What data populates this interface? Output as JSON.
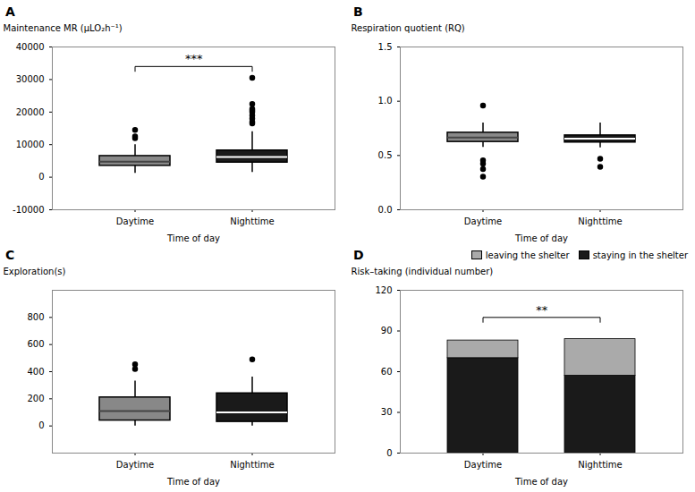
{
  "chart_data": [
    {
      "type": "box",
      "title": "A",
      "xlabel": "Time of day",
      "ylabel": "Maintenance MR (μLO₂h⁻¹)",
      "categories": [
        "Daytime",
        "Nighttime"
      ],
      "q1": [
        3500,
        4500
      ],
      "median": [
        4800,
        6200
      ],
      "q3": [
        6500,
        8200
      ],
      "whislo": [
        1200,
        1500
      ],
      "whishi": [
        10000,
        14000
      ],
      "fliers": [
        [
          12000,
          12500,
          14500
        ],
        [
          16500,
          17000,
          18000,
          19000,
          20000,
          20500,
          21000,
          22500,
          30500
        ]
      ],
      "colors": [
        "#888888",
        "#1a1a1a"
      ],
      "ylim": [
        -10000,
        40000
      ],
      "yticks": [
        -10000,
        0,
        10000,
        20000,
        30000,
        40000
      ],
      "annotations": [
        {
          "text": "***",
          "y": 34000,
          "x1": "Daytime",
          "x2": "Nighttime"
        }
      ]
    },
    {
      "type": "box",
      "title": "B",
      "xlabel": "Time of day",
      "ylabel": "Respiration quotient (RQ)",
      "categories": [
        "Daytime",
        "Nighttime"
      ],
      "q1": [
        0.625,
        0.62
      ],
      "median": [
        0.665,
        0.655
      ],
      "q3": [
        0.71,
        0.685
      ],
      "whislo": [
        0.575,
        0.57
      ],
      "whishi": [
        0.8,
        0.8
      ],
      "fliers": [
        [
          0.96,
          0.455,
          0.425,
          0.375,
          0.305
        ],
        [
          0.47,
          0.395
        ]
      ],
      "colors": [
        "#888888",
        "#1a1a1a"
      ],
      "ylim": [
        0.0,
        1.5
      ],
      "yticks": [
        {
          "value": 0,
          "label": "0.0"
        },
        0.5,
        {
          "value": 1,
          "label": "1.0"
        },
        1.5
      ]
    },
    {
      "type": "box",
      "title": "C",
      "xlabel": "Time of day",
      "ylabel": "Exploration(s)",
      "categories": [
        "Daytime",
        "Nighttime"
      ],
      "q1": [
        40,
        30
      ],
      "median": [
        110,
        100
      ],
      "q3": [
        210,
        240
      ],
      "whislo": [
        0,
        0
      ],
      "whishi": [
        330,
        360
      ],
      "fliers": [
        [
          420,
          455
        ],
        [
          490
        ]
      ],
      "colors": [
        "#888888",
        "#1a1a1a"
      ],
      "ylim": [
        -200,
        1000
      ],
      "yticks": [
        0,
        200,
        400,
        600,
        800
      ]
    },
    {
      "type": "bar",
      "title": "D",
      "stacked": true,
      "legend": "upper right",
      "xlabel": "Time of day",
      "ylabel": "Risk–taking (individual number)",
      "categories": [
        "Daytime",
        "Nighttime"
      ],
      "series": [
        {
          "name": "staying in the shelter",
          "color": "#1a1a1a",
          "values": [
            70,
            57
          ]
        },
        {
          "name": "leaving the shelter",
          "color": "#aaaaaa",
          "values": [
            13,
            27
          ]
        }
      ],
      "ylim": [
        0,
        120
      ],
      "yticks": [
        0,
        30,
        60,
        90,
        120
      ],
      "annotations": [
        {
          "text": "**",
          "y": 100,
          "x1": "Daytime",
          "x2": "Nighttime"
        }
      ]
    }
  ]
}
